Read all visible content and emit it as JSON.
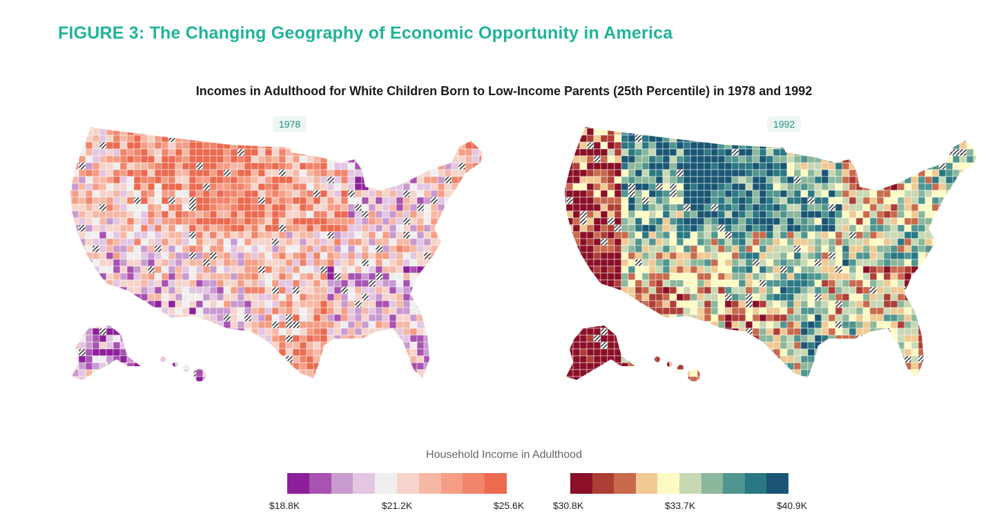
{
  "figure_title": "FIGURE 3: The Changing Geography of Economic Opportunity in America",
  "chart_title": "Incomes in Adulthood for White Children Born to Low-Income Parents (25th Percentile) in 1978 and 1992",
  "maps": [
    {
      "year": "1978",
      "palette": [
        "#8e1f9a",
        "#a852b2",
        "#c99ad0",
        "#e2c6e2",
        "#efefef",
        "#f6d4cb",
        "#f6b8a5",
        "#f59e85",
        "#f1846a",
        "#ec6a4f"
      ]
    },
    {
      "year": "1992",
      "palette": [
        "#8a0f27",
        "#ae3d36",
        "#c96a4d",
        "#f1c992",
        "#fdfbc3",
        "#c7d8b3",
        "#8bb79c",
        "#4f9590",
        "#2a7883",
        "#1a5674"
      ]
    }
  ],
  "legend": {
    "title": "Household Income in Adulthood",
    "scale_a": {
      "colors": [
        "#8e1f9a",
        "#a852b2",
        "#c99ad0",
        "#e2c6e2",
        "#efefef",
        "#f6d4cb",
        "#f6b8a5",
        "#f59e85",
        "#f1846a",
        "#ec6a4f"
      ],
      "ticks": [
        "$18.8K",
        "$21.2K",
        "$25.6K"
      ]
    },
    "scale_b": {
      "colors": [
        "#8a0f27",
        "#ae3d36",
        "#c96a4d",
        "#f1c992",
        "#fdfbc3",
        "#c7d8b3",
        "#8bb79c",
        "#4f9590",
        "#2a7883",
        "#1a5674"
      ],
      "ticks": [
        "$30.8K",
        "$33.7K",
        "$40.9K"
      ]
    }
  }
}
